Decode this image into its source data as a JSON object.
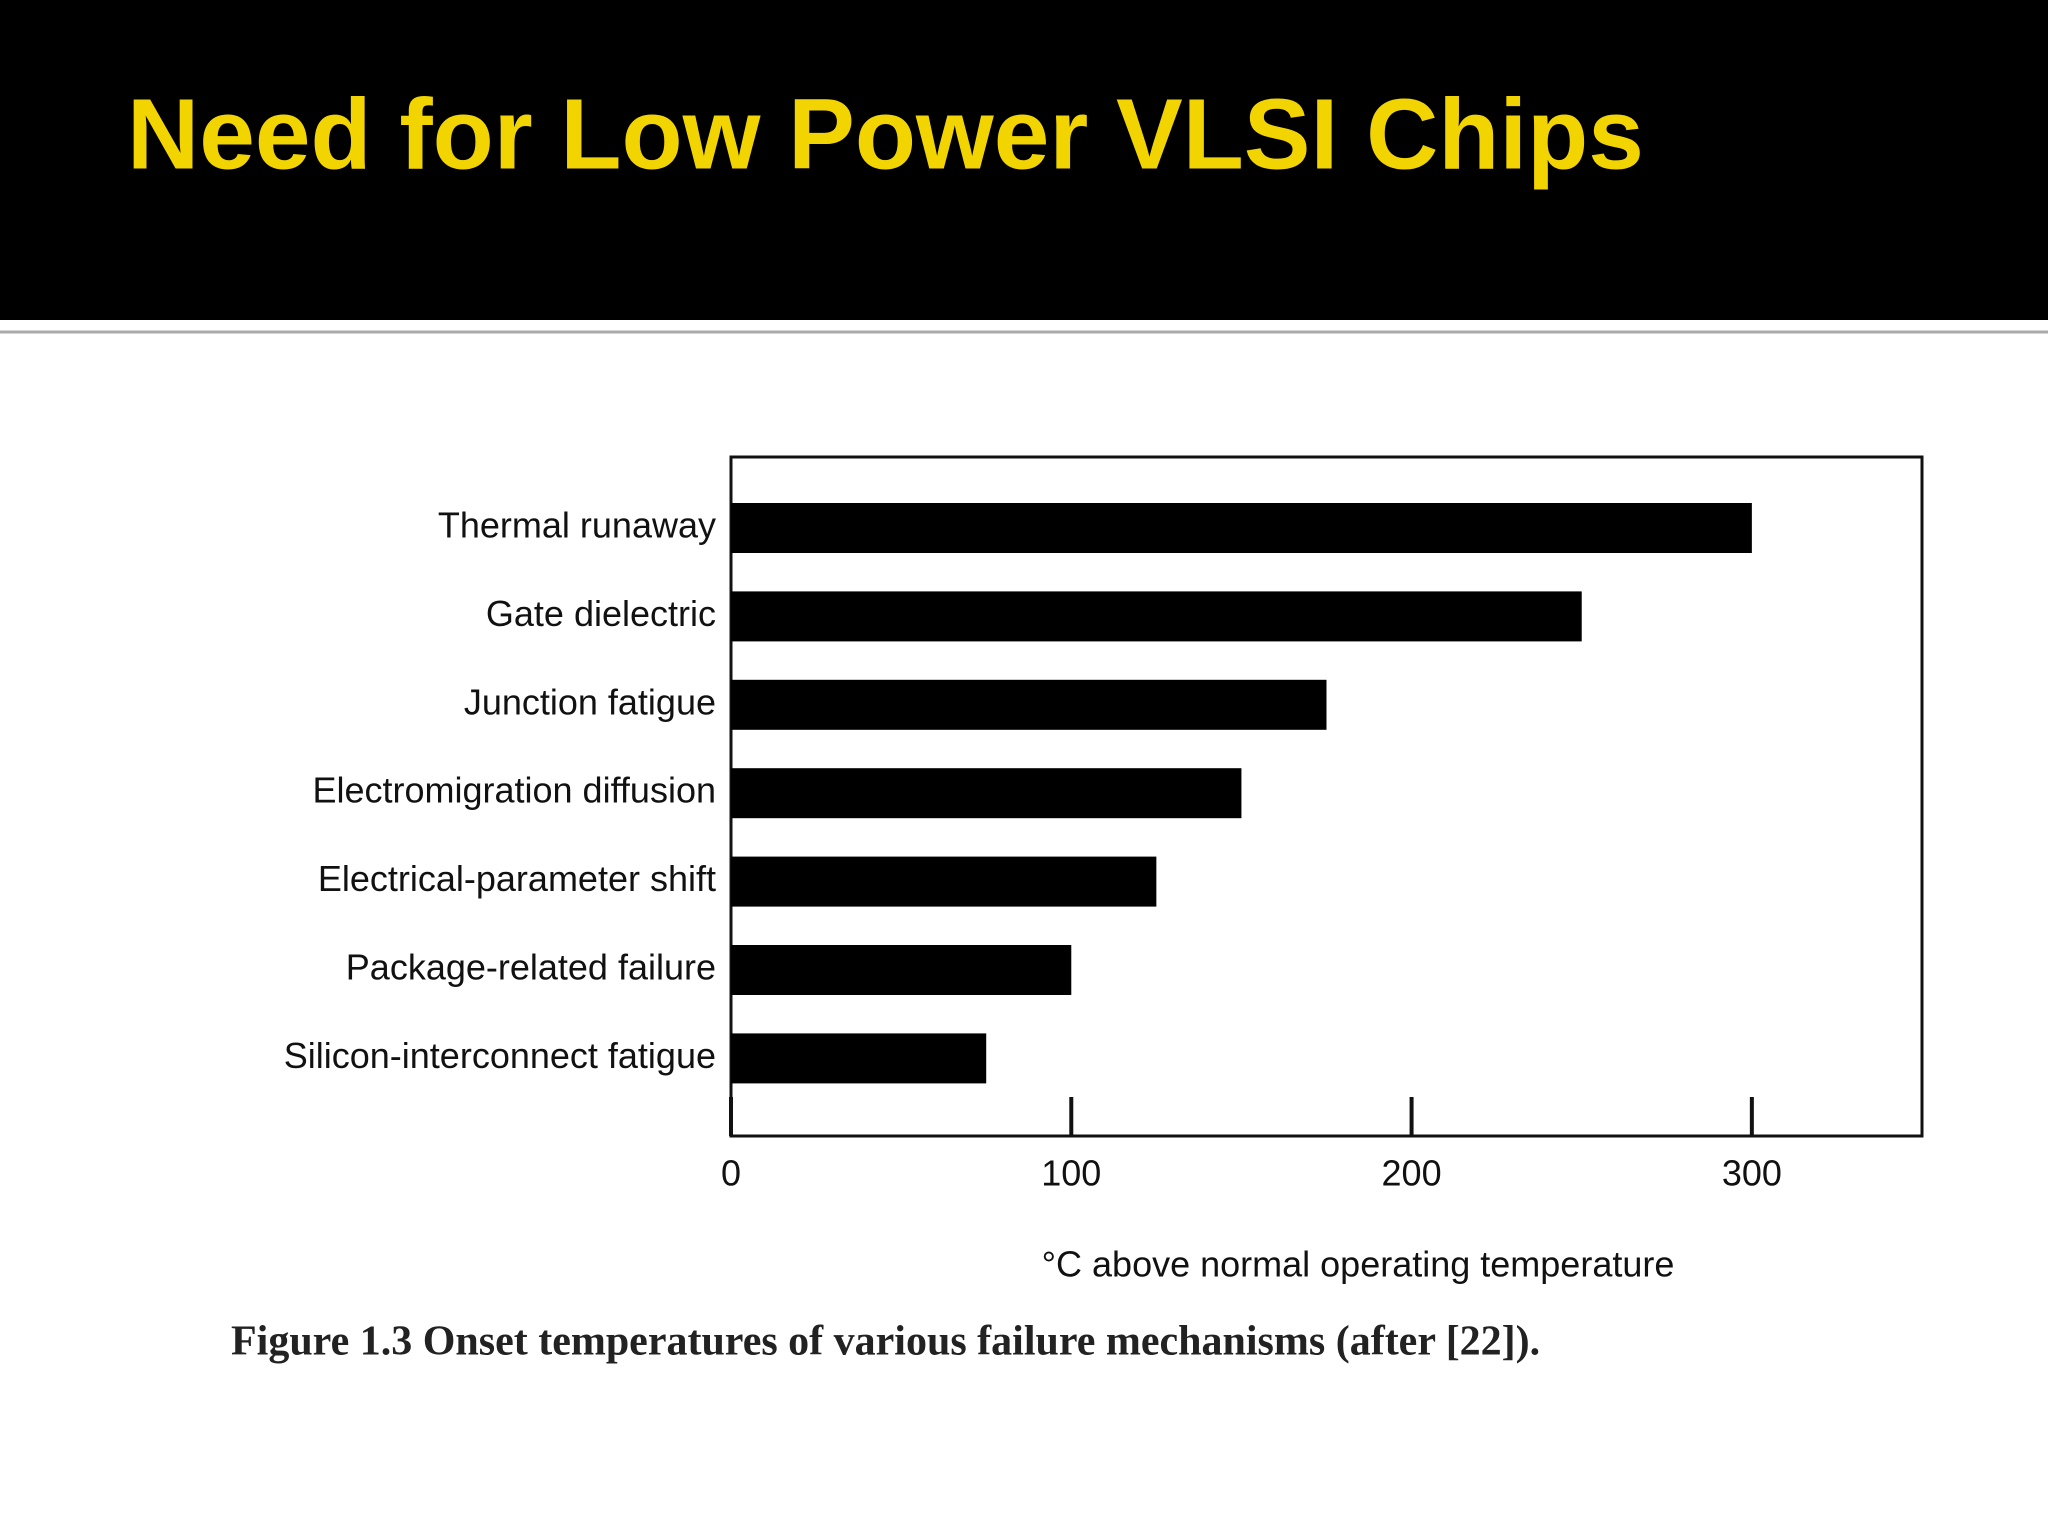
{
  "chart_data": {
    "type": "barh",
    "title": "Need for Low Power VLSI Chips",
    "categories": [
      "Thermal runaway",
      "Gate dielectric",
      "Junction fatigue",
      "Electromigration diffusion",
      "Electrical-parameter shift",
      "Package-related failure",
      "Silicon-interconnect fatigue"
    ],
    "values": [
      300,
      250,
      175,
      150,
      125,
      100,
      75
    ],
    "color": "#000000",
    "xlim": [
      0,
      350
    ],
    "xticks": [
      0,
      100,
      200,
      300
    ],
    "x_label": "°C above normal operating temperature",
    "caption": "Figure 1.3 Onset temperatures of various failure mechanisms (after [22])."
  }
}
